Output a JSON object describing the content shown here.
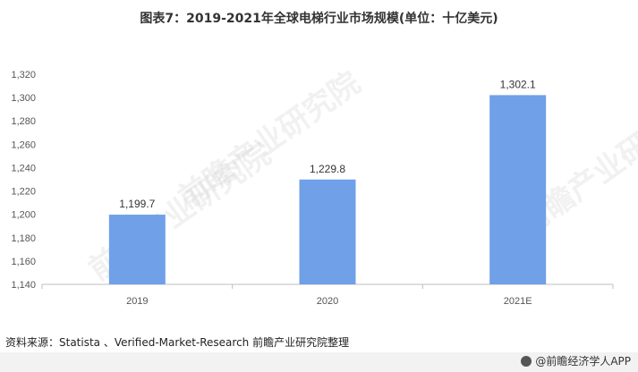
{
  "title": "图表7：2019-2021年全球电梯行业市场规模(单位：十亿美元)",
  "source": "资料来源：Statista 、Verified-Market-Research 前瞻产业研究院整理",
  "brand": "@前瞻经济学人APP",
  "watermark": "前瞻产业研究院",
  "colors": {
    "bar": "#6fa0e8",
    "axis": "#bfbfbf"
  },
  "chart_data": {
    "type": "bar",
    "title": "图表7：2019-2021年全球电梯行业市场规模(单位：十亿美元)",
    "categories": [
      "2019",
      "2020",
      "2021E"
    ],
    "values": [
      1199.7,
      1229.8,
      1302.1
    ],
    "value_labels": [
      "1,199.7",
      "1,229.8",
      "1,302.1"
    ],
    "ylim": [
      1140,
      1320
    ],
    "yticks": [
      1140,
      1160,
      1180,
      1200,
      1220,
      1240,
      1260,
      1280,
      1300,
      1320
    ],
    "ytick_labels": [
      "1,140",
      "1,160",
      "1,180",
      "1,200",
      "1,220",
      "1,240",
      "1,260",
      "1,280",
      "1,300",
      "1,320"
    ],
    "xlabel": "",
    "ylabel": "",
    "grid": false,
    "legend": "none"
  }
}
